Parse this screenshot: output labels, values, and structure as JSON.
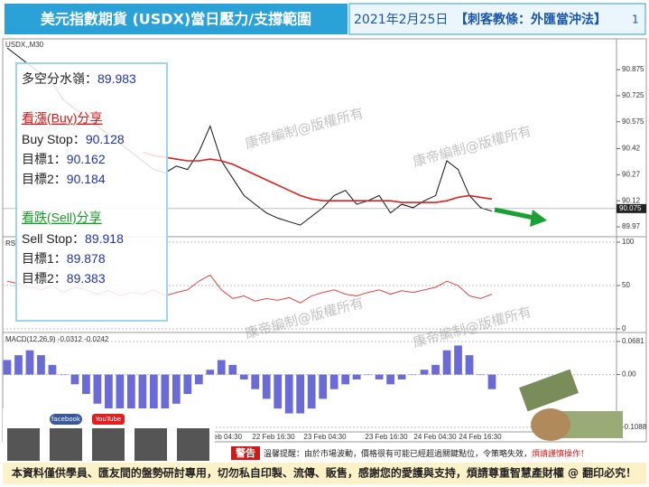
{
  "header": {
    "title": "美元指數期貨 (USDX)當日壓力/支撐範圍",
    "date": "2021年2月25日",
    "slogan": "【刺客教條：外匯當沖法】",
    "page": "1"
  },
  "watermark": "康帝編制@版權所有",
  "levels": {
    "pivot_label": "多空分水嶺：",
    "pivot": 89.983,
    "buy_title": "看漲(Buy)分享",
    "buy_stop_label": "Buy Stop：",
    "buy_stop": 90.128,
    "buy_t1_label": "目標1：",
    "buy_t1": 90.162,
    "buy_t2_label": "目標2：",
    "buy_t2": 90.184,
    "sell_title": "看跌(Sell)分享",
    "sell_stop_label": "Sell Stop：",
    "sell_stop": 89.918,
    "sell_t1_label": "目標1：",
    "sell_t1": 89.878,
    "sell_t2_label": "目標2：",
    "sell_t2": 89.383
  },
  "chart_data": [
    {
      "type": "line",
      "symbol": "USDX,,M30",
      "ylim": [
        89.913,
        91.047
      ],
      "yticks": [
        90.875,
        90.725,
        90.575,
        90.42,
        90.27,
        90.12,
        89.97
      ],
      "current_price": 90.075,
      "x_labels": [
        "Feb 04:30",
        "22 Feb 16:30",
        "23 Feb 04:30",
        "23 Feb 16:30",
        "24 Feb 04:30",
        "24 Feb 16:30"
      ],
      "series": [
        {
          "color": "#111111",
          "values": [
            91.0,
            90.95,
            90.9,
            90.85,
            90.8,
            90.7,
            90.65,
            90.6,
            90.55,
            90.5,
            90.45,
            90.4,
            90.35,
            90.3,
            90.28,
            90.32,
            90.3,
            90.4,
            90.55,
            90.35,
            90.25,
            90.15,
            90.1,
            90.05,
            90.02,
            90.0,
            89.98,
            90.03,
            90.08,
            90.15,
            90.18,
            90.1,
            90.12,
            90.15,
            90.05,
            90.1,
            90.08,
            90.12,
            90.15,
            90.35,
            90.3,
            90.15,
            90.08,
            90.06
          ]
        },
        {
          "color": "#e02020",
          "values": [
            null,
            null,
            null,
            null,
            null,
            null,
            null,
            null,
            null,
            null,
            null,
            null,
            90.4,
            90.38,
            90.37,
            90.36,
            90.35,
            90.35,
            90.36,
            90.35,
            90.33,
            90.3,
            90.27,
            90.24,
            90.21,
            90.18,
            90.15,
            90.13,
            90.12,
            90.12,
            90.12,
            90.12,
            90.12,
            90.12,
            90.12,
            90.11,
            90.11,
            90.11,
            90.11,
            90.12,
            90.14,
            90.15,
            90.14,
            90.13
          ]
        }
      ]
    },
    {
      "type": "line",
      "label": "RSI",
      "ylim": [
        -4.2,
        105.2
      ],
      "yticks": [
        100,
        50,
        0
      ],
      "color": "#e03030",
      "values": [
        55,
        52,
        48,
        45,
        50,
        42,
        48,
        45,
        40,
        44,
        38,
        42,
        40,
        45,
        38,
        42,
        45,
        55,
        62,
        45,
        35,
        38,
        32,
        35,
        33,
        36,
        30,
        38,
        42,
        45,
        40,
        38,
        42,
        45,
        40,
        44,
        42,
        45,
        48,
        55,
        50,
        38,
        35,
        40
      ]
    },
    {
      "type": "bar",
      "label": "MACD(12,26,9) -0.0312 -0.0242",
      "ylim": [
        -0.1181,
        0.0849
      ],
      "yticks": [
        {
          "value": 0.0681,
          "label": "0.0681"
        },
        {
          "value": 0,
          "label": "0.00"
        },
        {
          "value": -0.1088,
          "label": "-0.1088"
        }
      ],
      "color": "#6a6ad8",
      "values": [
        0.03,
        0.04,
        0.05,
        0.04,
        0.02,
        0.0,
        -0.02,
        -0.04,
        -0.06,
        -0.08,
        -0.09,
        -0.1,
        -0.1,
        -0.09,
        -0.08,
        -0.06,
        -0.04,
        -0.02,
        0.01,
        0.03,
        0.02,
        -0.01,
        -0.03,
        -0.05,
        -0.07,
        -0.08,
        -0.08,
        -0.07,
        -0.05,
        -0.03,
        -0.02,
        -0.01,
        0.0,
        -0.01,
        -0.02,
        -0.01,
        0.0,
        0.01,
        0.02,
        0.05,
        0.06,
        0.04,
        0.0,
        -0.03
      ]
    }
  ],
  "footer": {
    "social": [
      "facebook",
      "YouTube"
    ],
    "warning_badge": "警告",
    "warning_text": "溫馨提醒：由於市場波動，價格很有可能已經超過關鍵點位，令策略失效，",
    "warning_emph": "煩請謹慎操作！",
    "notice": "本資料僅供學員、匯友間的盤勢研討專用，切勿私自印製、流傳、販售，感謝您的愛護與支持，煩請尊重智慧產財權 @ 翻印必究！"
  }
}
